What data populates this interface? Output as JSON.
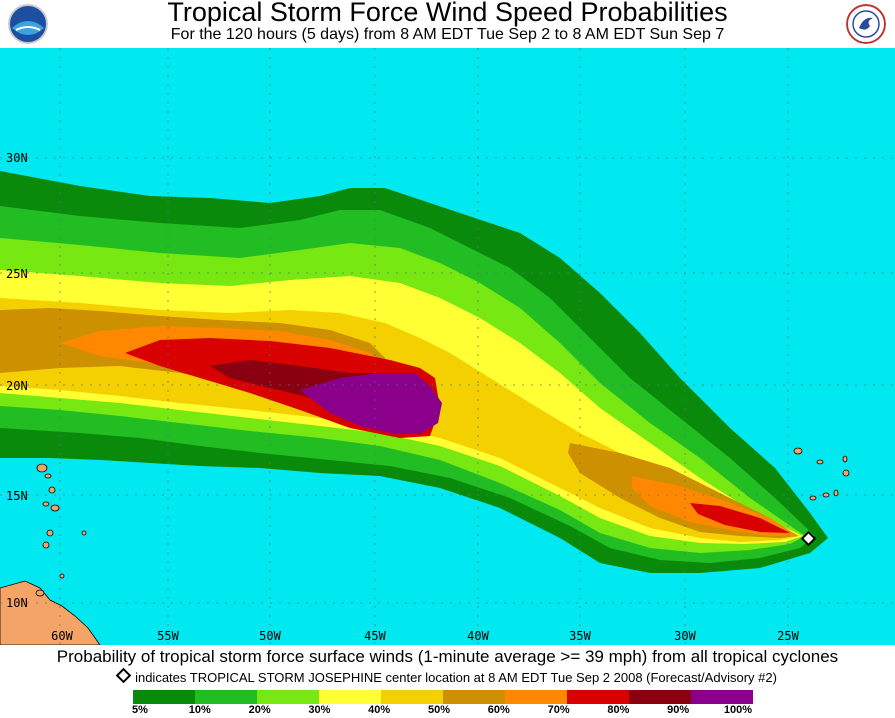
{
  "header": {
    "title": "Tropical Storm Force Wind Speed Probabilities",
    "subtitle": "For the 120 hours (5 days) from 8 AM EDT Tue Sep 2 to 8 AM EDT Sun Sep 7"
  },
  "map": {
    "lat_labels": [
      "30N",
      "25N",
      "20N",
      "15N",
      "10N"
    ],
    "lon_labels": [
      "60W",
      "55W",
      "50W",
      "45W",
      "40W",
      "35W",
      "30W",
      "25W"
    ],
    "colors": {
      "ocean": "#00e8f0",
      "land": "#f5a468"
    }
  },
  "footer": {
    "caption": "Probability of tropical storm force surface winds (1-minute average >= 39 mph) from all tropical cyclones",
    "marker_note": "indicates TROPICAL STORM JOSEPHINE center location at 8 AM EDT Tue Sep 2 2008 (Forecast/Advisory #2)"
  },
  "legend": {
    "colors": [
      "#0a8a0a",
      "#22bd22",
      "#77e812",
      "#ffff33",
      "#f5d000",
      "#cc9000",
      "#ff8800",
      "#d90000",
      "#8a0010",
      "#8a008a"
    ],
    "labels": [
      "5%",
      "10%",
      "20%",
      "30%",
      "40%",
      "50%",
      "60%",
      "70%",
      "80%",
      "90%",
      "100%"
    ]
  }
}
